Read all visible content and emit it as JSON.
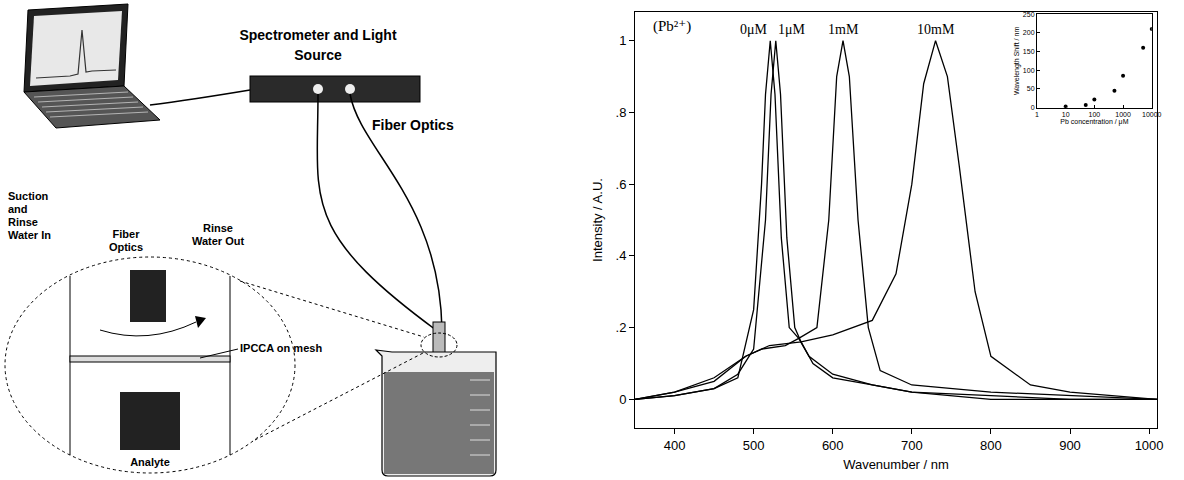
{
  "diagram": {
    "spectrometer_label": [
      "Spectrometer and Light",
      "Source"
    ],
    "fiber_label": "Fiber Optics",
    "detail_labels": {
      "suction": [
        "Suction",
        "and",
        "Rinse",
        "Water In"
      ],
      "fiber": [
        "Fiber",
        "Optics"
      ],
      "rinse_out": [
        "Rinse",
        "Water Out"
      ],
      "ipcca": "IPCCA on mesh",
      "analyte": "Analyte"
    }
  },
  "chart_data": [
    {
      "type": "line",
      "annotations": [
        "(Pb²⁺)"
      ],
      "x_label": "Wavenumber / nm",
      "y_label": "Intensity / A.U.",
      "xlim": [
        350,
        1010
      ],
      "xticks": [
        400,
        500,
        600,
        700,
        800,
        900,
        1000
      ],
      "ylim": [
        -0.08,
        1.08
      ],
      "yticks": [
        0,
        {
          "value": 0.2,
          "label": ".2"
        },
        {
          "value": 0.4,
          "label": ".4"
        },
        {
          "value": 0.6,
          "label": ".6"
        },
        {
          "value": 0.8,
          "label": ".8"
        },
        1
      ],
      "grid": false,
      "series": [
        {
          "name": "0μM",
          "color": "#000000",
          "x": [
            350,
            400,
            450,
            480,
            500,
            510,
            515,
            521,
            527,
            535,
            545,
            557,
            570,
            600,
            650,
            700,
            800,
            900,
            1010
          ],
          "values": [
            0,
            0.01,
            0.03,
            0.06,
            0.25,
            0.6,
            0.85,
            1,
            0.85,
            0.45,
            0.2,
            0.17,
            0.12,
            0.07,
            0.04,
            0.02,
            0,
            0,
            0
          ]
        },
        {
          "name": "1μM",
          "color": "#000000",
          "x": [
            350,
            400,
            450,
            480,
            500,
            515,
            522,
            528,
            534,
            542,
            552,
            560,
            575,
            600,
            650,
            700,
            800,
            900,
            1010
          ],
          "values": [
            0,
            0.01,
            0.03,
            0.07,
            0.14,
            0.5,
            0.85,
            1,
            0.85,
            0.45,
            0.2,
            0.16,
            0.1,
            0.06,
            0.04,
            0.02,
            0.01,
            0,
            0
          ]
        },
        {
          "name": "1mM",
          "color": "#000000",
          "x": [
            350,
            400,
            450,
            490,
            510,
            540,
            557,
            580,
            595,
            605,
            613,
            621,
            632,
            645,
            660,
            700,
            800,
            900,
            1010
          ],
          "values": [
            0,
            0.02,
            0.05,
            0.12,
            0.14,
            0.15,
            0.17,
            0.2,
            0.5,
            0.9,
            1,
            0.9,
            0.5,
            0.2,
            0.08,
            0.04,
            0.02,
            0.01,
            0
          ]
        },
        {
          "name": "10mM",
          "color": "#000000",
          "x": [
            350,
            400,
            450,
            490,
            520,
            560,
            600,
            625,
            650,
            680,
            700,
            715,
            730,
            745,
            760,
            780,
            800,
            850,
            900,
            1010
          ],
          "values": [
            0,
            0.02,
            0.06,
            0.12,
            0.15,
            0.16,
            0.18,
            0.2,
            0.22,
            0.35,
            0.6,
            0.88,
            1,
            0.9,
            0.65,
            0.3,
            0.12,
            0.04,
            0.02,
            0
          ]
        }
      ]
    },
    {
      "type": "scatter",
      "x_label": "Pb concentration / μM",
      "y_label": "Wavelength Shift / nm",
      "log": "x",
      "xlim": [
        1,
        10000
      ],
      "xticks": [
        1,
        10,
        100,
        1000,
        10000
      ],
      "ylim": [
        0,
        250
      ],
      "yticks": [
        0,
        50,
        100,
        150,
        200,
        250
      ],
      "grid": false,
      "color": "#000000",
      "marker": "circle",
      "x": [
        10,
        50,
        100,
        500,
        1000,
        5000,
        10000
      ],
      "values": [
        3,
        7,
        22,
        45,
        85,
        160,
        210
      ]
    }
  ]
}
